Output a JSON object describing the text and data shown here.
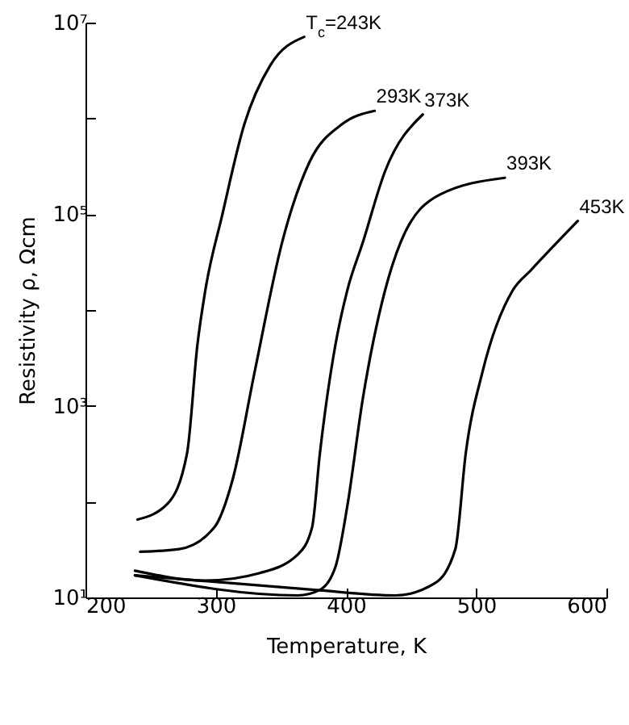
{
  "chart_data": {
    "type": "line",
    "xlabel": "Temperature, K",
    "ylabel": "Resistivity ρ, Ωcm",
    "xlim": [
      200,
      600
    ],
    "xticks": [
      200,
      300,
      400,
      500,
      600
    ],
    "ylim": [
      10,
      10000000
    ],
    "log": "y",
    "yticks": [
      {
        "value": 10,
        "label": "10¹"
      },
      {
        "value": 100,
        "label": null
      },
      {
        "value": 1000,
        "label": "10³"
      },
      {
        "value": 10000,
        "label": null
      },
      {
        "value": 100000,
        "label": "10⁵"
      },
      {
        "value": 1000000,
        "label": null
      },
      {
        "value": 10000000,
        "label": "10⁷"
      }
    ],
    "grid": false,
    "marker": "none",
    "line_style": "solid",
    "series": [
      {
        "name": "T$_{c}$=243K",
        "color": "#000000",
        "x": [
          240,
          263,
          278,
          286,
          292,
          305,
          322,
          342,
          368
        ],
        "values": [
          65,
          95,
          320,
          4400,
          16000,
          98000,
          870000,
          3600000,
          7100000
        ]
      },
      {
        "name": "293K",
        "color": "#000000",
        "x": [
          242,
          272,
          299,
          313,
          330,
          351,
          372,
          397,
          422
        ],
        "values": [
          30,
          32,
          54,
          170,
          2300,
          51000,
          350000,
          870000,
          1200000
        ]
      },
      {
        "name": "373K",
        "color": "#000000",
        "x": [
          238,
          292,
          334,
          363,
          374,
          380,
          392,
          401,
          413,
          430,
          459
        ],
        "values": [
          19,
          15,
          18,
          28,
          54,
          320,
          4400,
          16000,
          51000,
          280000,
          1100000
        ]
      },
      {
        "name": "393K",
        "color": "#000000",
        "x": [
          238,
          363,
          380,
          392,
          401,
          413,
          430,
          442,
          472,
          522
        ],
        "values": [
          17,
          10.5,
          12,
          21,
          89,
          1200,
          16000,
          51000,
          160000,
          240000
        ]
      },
      {
        "name": "453K",
        "color": "#000000",
        "x": [
          238,
          376,
          438,
          468,
          484,
          492,
          505,
          528,
          542,
          578
        ],
        "values": [
          17,
          12,
          10.5,
          14,
          32,
          320,
          2300,
          16000,
          26000,
          85000
        ]
      }
    ]
  }
}
